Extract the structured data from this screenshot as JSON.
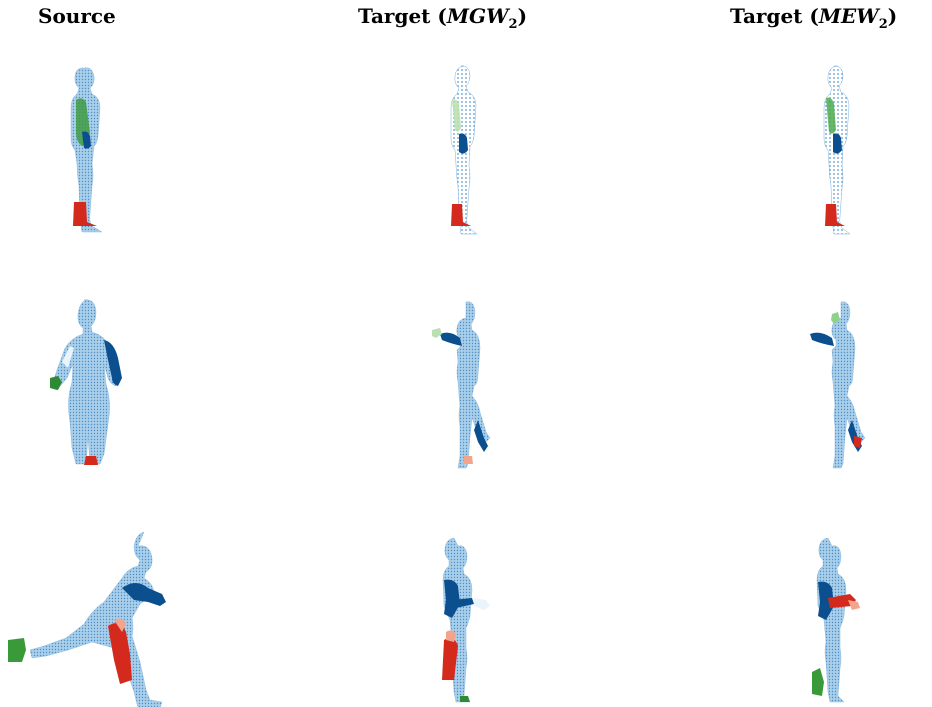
{
  "headers": {
    "source": "Source",
    "target_mgw": {
      "prefix": "Target (",
      "symbol": "MGW",
      "sub": "2",
      "suffix": ")"
    },
    "target_mew": {
      "prefix": "Target (",
      "symbol": "MEW",
      "sub": "2",
      "suffix": ")"
    }
  },
  "colors": {
    "body_light": "#9cc7e6",
    "body_mid": "#6aa9d8",
    "dark_blue": "#0b4f8f",
    "green": "#3a9a3a",
    "light_green": "#b9e0b0",
    "red": "#d42a1e",
    "light_red": "#f2a58a"
  },
  "panels": [
    {
      "row": 1,
      "column": "source",
      "pose": "standing-side-view"
    },
    {
      "row": 1,
      "column": "target_mgw",
      "pose": "standing-side-view"
    },
    {
      "row": 1,
      "column": "target_mew",
      "pose": "standing-side-view"
    },
    {
      "row": 2,
      "column": "source",
      "pose": "standing-front-view"
    },
    {
      "row": 2,
      "column": "target_mgw",
      "pose": "standing-one-leg-raised"
    },
    {
      "row": 2,
      "column": "target_mew",
      "pose": "standing-one-leg-raised"
    },
    {
      "row": 3,
      "column": "source",
      "pose": "running-lunge"
    },
    {
      "row": 3,
      "column": "target_mgw",
      "pose": "walking-side-view"
    },
    {
      "row": 3,
      "column": "target_mew",
      "pose": "walking-side-view"
    }
  ]
}
